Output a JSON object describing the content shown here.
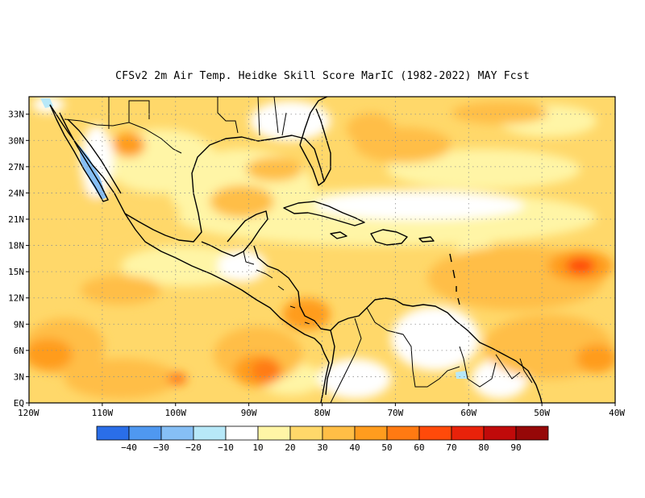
{
  "title": "CFSv2  2m Air Temp. Heidke Skill Score MarIC (1982-2022) MAY Fcst",
  "map": {
    "lon_range": [
      -120,
      -40
    ],
    "lat_range": [
      0,
      35
    ],
    "lat_labels": [
      "EQ",
      "3N",
      "6N",
      "9N",
      "12N",
      "15N",
      "18N",
      "21N",
      "24N",
      "27N",
      "30N",
      "33N"
    ],
    "lat_values": [
      0,
      3,
      6,
      9,
      12,
      15,
      18,
      21,
      24,
      27,
      30,
      33
    ],
    "lon_labels": [
      "120W",
      "110W",
      "100W",
      "90W",
      "80W",
      "70W",
      "60W",
      "50W",
      "40W"
    ],
    "lon_values": [
      -120,
      -110,
      -100,
      -90,
      -80,
      -70,
      -60,
      -50,
      -40
    ],
    "grid": "dotted"
  },
  "legend": {
    "colors": [
      "#2a6ee8",
      "#4f98f0",
      "#86bff5",
      "#b7e8f8",
      "#ffffff",
      "#fff5a6",
      "#ffd86a",
      "#ffbe46",
      "#ff9c1e",
      "#ff7a12",
      "#ff4a0a",
      "#e8220a",
      "#c00a0a",
      "#960808"
    ],
    "labels": [
      "-40",
      "-30",
      "-20",
      "-10",
      "10",
      "20",
      "30",
      "40",
      "50",
      "60",
      "70",
      "80",
      "90"
    ]
  }
}
